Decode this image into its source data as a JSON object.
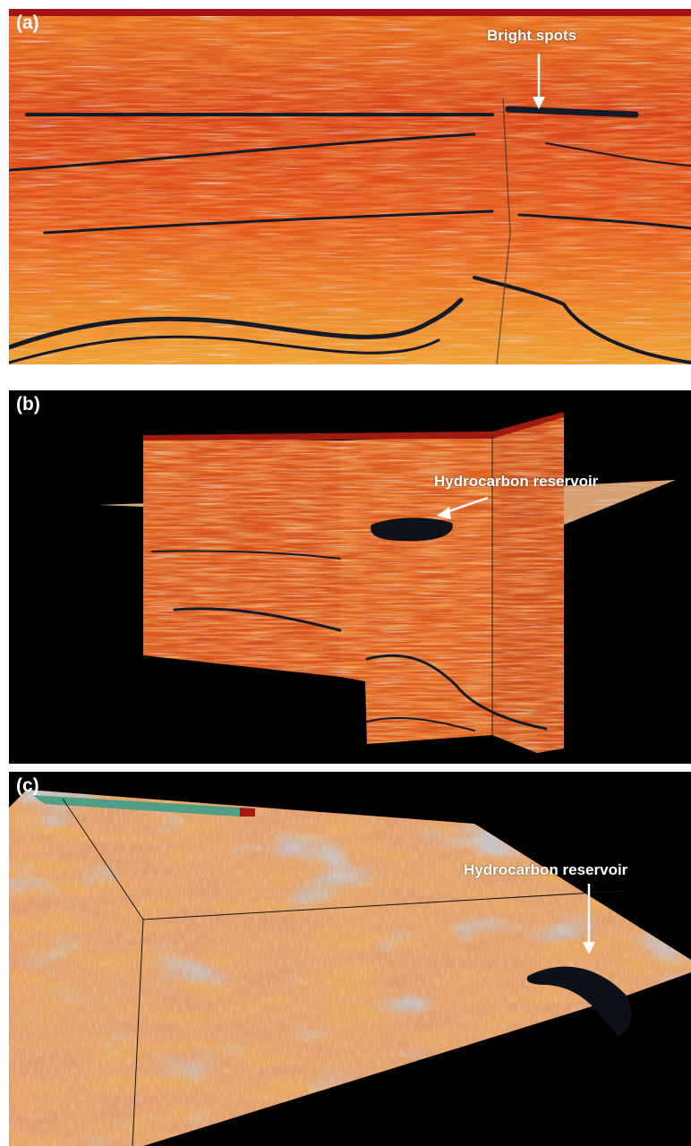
{
  "panels": [
    {
      "label": "(a)",
      "annotation": "Bright spots"
    },
    {
      "label": "(b)",
      "annotation": "Hydrocarbon reservoir"
    },
    {
      "label": "(c)",
      "annotation": "Hydrocarbon reservoir"
    }
  ],
  "colors": {
    "seismic_high": "#e0471b",
    "seismic_mid": "#f0a030",
    "seismic_low": "#1a1f2e",
    "seismic_pale": "#b8c4d8",
    "background": "#000000",
    "annotation": "#ffffff",
    "strip": "#4f9e86"
  }
}
